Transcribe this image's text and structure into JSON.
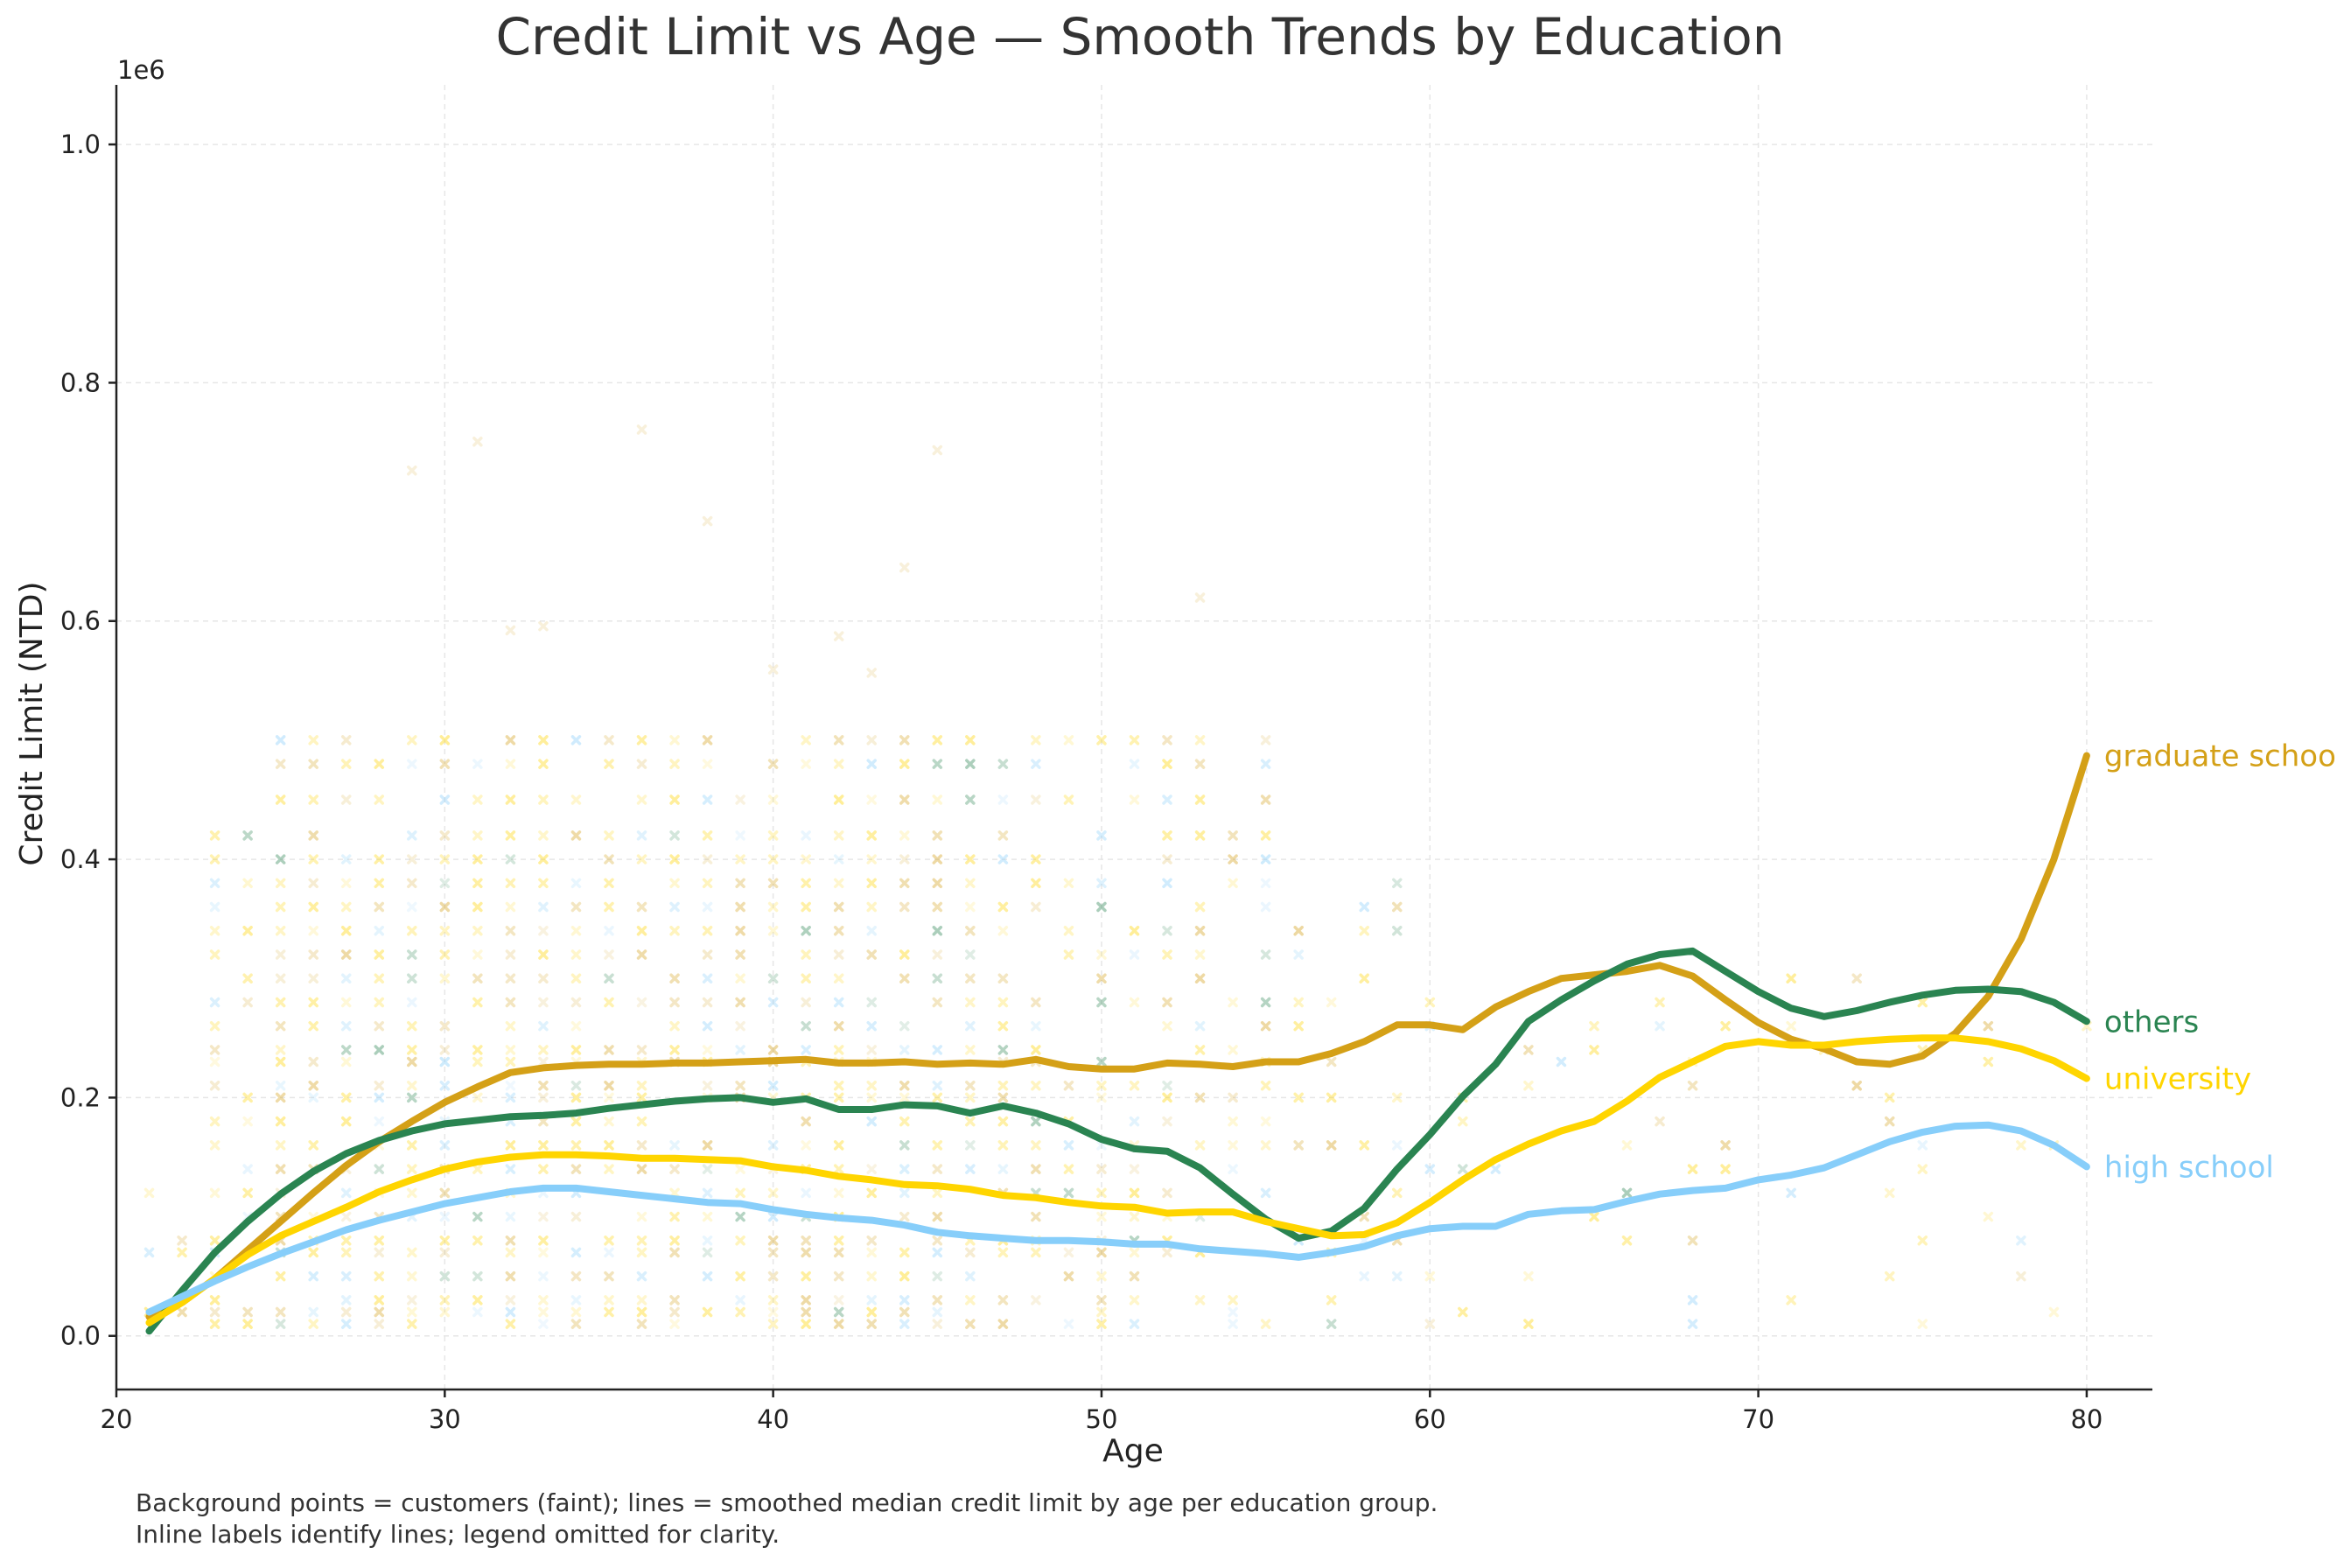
{
  "chart_data": {
    "type": "line",
    "title": "Credit Limit vs Age — Smooth Trends by Education",
    "xlabel": "Age",
    "ylabel": "Credit Limit (NTD)",
    "y_offset_label": "1e6",
    "xlim": [
      20,
      82
    ],
    "ylim": [
      -0.045,
      1.05
    ],
    "x_ticks": [
      20,
      30,
      40,
      50,
      60,
      70,
      80
    ],
    "y_ticks": [
      0.0,
      0.2,
      0.4,
      0.6,
      0.8,
      1.0
    ],
    "grid": true,
    "legend": "none",
    "x": [
      21,
      22,
      23,
      24,
      25,
      26,
      27,
      28,
      29,
      30,
      31,
      32,
      33,
      34,
      35,
      36,
      37,
      38,
      39,
      40,
      41,
      42,
      43,
      44,
      45,
      46,
      47,
      48,
      49,
      50,
      51,
      52,
      53,
      54,
      55,
      56,
      57,
      58,
      59,
      60,
      61,
      62,
      63,
      64,
      65,
      66,
      67,
      68,
      69,
      70,
      71,
      72,
      73,
      74,
      75,
      76,
      77,
      78,
      79,
      80
    ],
    "series": [
      {
        "name": "graduate school",
        "color": "#D4A017",
        "values": [
          0.016,
          0.028,
          0.048,
          0.072,
          0.096,
          0.12,
          0.143,
          0.163,
          0.18,
          0.196,
          0.209,
          0.221,
          0.225,
          0.227,
          0.228,
          0.228,
          0.229,
          0.229,
          0.23,
          0.231,
          0.232,
          0.229,
          0.229,
          0.23,
          0.228,
          0.229,
          0.228,
          0.232,
          0.226,
          0.224,
          0.224,
          0.229,
          0.228,
          0.226,
          0.23,
          0.23,
          0.237,
          0.247,
          0.261,
          0.261,
          0.257,
          0.276,
          0.289,
          0.3,
          0.303,
          0.306,
          0.311,
          0.302,
          0.282,
          0.263,
          0.249,
          0.241,
          0.23,
          0.228,
          0.235,
          0.254,
          0.285,
          0.333,
          0.4,
          0.487
        ]
      },
      {
        "name": "others",
        "color": "#2A8451",
        "values": [
          0.004,
          0.038,
          0.07,
          0.096,
          0.119,
          0.138,
          0.153,
          0.164,
          0.172,
          0.178,
          0.181,
          0.184,
          0.185,
          0.187,
          0.191,
          0.194,
          0.197,
          0.199,
          0.2,
          0.196,
          0.199,
          0.19,
          0.19,
          0.194,
          0.193,
          0.187,
          0.193,
          0.187,
          0.178,
          0.165,
          0.157,
          0.155,
          0.141,
          0.119,
          0.098,
          0.082,
          0.088,
          0.107,
          0.14,
          0.169,
          0.201,
          0.228,
          0.264,
          0.282,
          0.298,
          0.312,
          0.32,
          0.323,
          0.306,
          0.289,
          0.275,
          0.268,
          0.273,
          0.28,
          0.286,
          0.29,
          0.291,
          0.289,
          0.28,
          0.264
        ]
      },
      {
        "name": "university",
        "color": "#FFD500",
        "values": [
          0.011,
          0.028,
          0.048,
          0.068,
          0.084,
          0.096,
          0.108,
          0.121,
          0.131,
          0.14,
          0.146,
          0.15,
          0.152,
          0.152,
          0.151,
          0.149,
          0.149,
          0.148,
          0.147,
          0.142,
          0.139,
          0.134,
          0.131,
          0.127,
          0.126,
          0.123,
          0.118,
          0.116,
          0.112,
          0.109,
          0.108,
          0.103,
          0.104,
          0.104,
          0.096,
          0.09,
          0.084,
          0.085,
          0.095,
          0.112,
          0.131,
          0.148,
          0.161,
          0.172,
          0.18,
          0.197,
          0.217,
          0.23,
          0.243,
          0.247,
          0.244,
          0.244,
          0.247,
          0.249,
          0.25,
          0.25,
          0.247,
          0.241,
          0.231,
          0.216
        ]
      },
      {
        "name": "high school",
        "color": "#87CEFA",
        "values": [
          0.02,
          0.033,
          0.046,
          0.058,
          0.069,
          0.079,
          0.089,
          0.097,
          0.104,
          0.111,
          0.116,
          0.121,
          0.124,
          0.124,
          0.121,
          0.118,
          0.115,
          0.112,
          0.111,
          0.106,
          0.102,
          0.099,
          0.097,
          0.093,
          0.087,
          0.084,
          0.082,
          0.08,
          0.08,
          0.079,
          0.077,
          0.077,
          0.073,
          0.071,
          0.069,
          0.066,
          0.07,
          0.075,
          0.084,
          0.09,
          0.092,
          0.092,
          0.102,
          0.105,
          0.106,
          0.113,
          0.119,
          0.122,
          0.124,
          0.131,
          0.135,
          0.141,
          0.152,
          0.163,
          0.171,
          0.176,
          0.177,
          0.172,
          0.16,
          0.142
        ]
      }
    ],
    "scatter_note": "Faint background cross markers at integer ages 21-80 with credit limits mostly between 0.01e6 and 0.5e6, colored by education group."
  },
  "caption": {
    "line1": "Background points = customers (faint); lines = smoothed median credit limit by age per education group.",
    "line2": "Inline labels identify lines; legend omitted for clarity."
  }
}
